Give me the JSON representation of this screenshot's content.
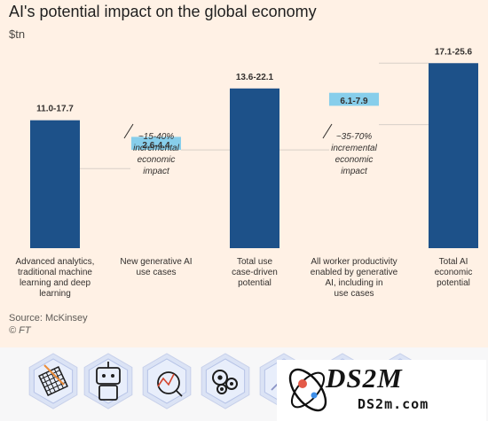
{
  "title": "AI's potential impact on the global economy",
  "unit": "$tn",
  "source": "Source: McKinsey",
  "credit": "© FT",
  "brand": {
    "main": "DS2M",
    "domain": "DS2m.com"
  },
  "footer_icons": [
    "chart-grid-icon",
    "robot-icon",
    "analytics-magnifier-icon",
    "gears-icon",
    "chart-nodes-icon",
    "people-network-icon",
    "document-icon"
  ],
  "colors": {
    "background": "#fff1e5",
    "dark_bar": "#1d5189",
    "light_bar": "#87ceeb",
    "text": "#33302e",
    "footer_icon_bg": "#b7c7e8",
    "footer_icon_stroke": "#5f6ea7"
  },
  "chart_data": {
    "type": "waterfall",
    "title": "AI's potential impact on the global economy",
    "ylabel": "$tn",
    "ylim": [
      0,
      26
    ],
    "grid": false,
    "series": [
      {
        "name": "",
        "bars": [
          {
            "category": "Advanced analytics, traditional machine learning and deep learning",
            "label": "11.0-17.7",
            "low": 11.0,
            "high": 17.7,
            "kind": "total"
          },
          {
            "category": "New generative AI use cases",
            "label": "2.6-4.4",
            "low": 2.6,
            "high": 4.4,
            "kind": "increment"
          },
          {
            "category": "Total use case-driven potential",
            "label": "13.6-22.1",
            "low": 13.6,
            "high": 22.1,
            "kind": "total"
          },
          {
            "category": "All worker productivity enabled by generative AI, including in use cases",
            "label": "6.1-7.9",
            "low": 6.1,
            "high": 7.9,
            "kind": "increment"
          },
          {
            "category": "Total AI economic potential",
            "label": "17.1-25.6",
            "low": 17.1,
            "high": 25.6,
            "kind": "total"
          }
        ]
      }
    ],
    "annotations": [
      {
        "text": "~15-40% incremental economic impact"
      },
      {
        "text": "~35-70% incremental economic impact"
      }
    ],
    "category_labels": [
      [
        "Advanced analytics,",
        "traditional machine",
        "learning and deep",
        "learning"
      ],
      [
        "New generative AI",
        "use cases"
      ],
      [
        "Total use",
        "case-driven",
        "potential"
      ],
      [
        "All worker productivity",
        "enabled by generative",
        "AI, including in",
        "use cases"
      ],
      [
        "Total AI",
        "economic",
        "potential"
      ]
    ],
    "annotation_lines": [
      [
        "~15-40%",
        "incremental",
        "economic",
        "impact"
      ],
      [
        "~35-70%",
        "incremental",
        "economic",
        "impact"
      ]
    ]
  }
}
